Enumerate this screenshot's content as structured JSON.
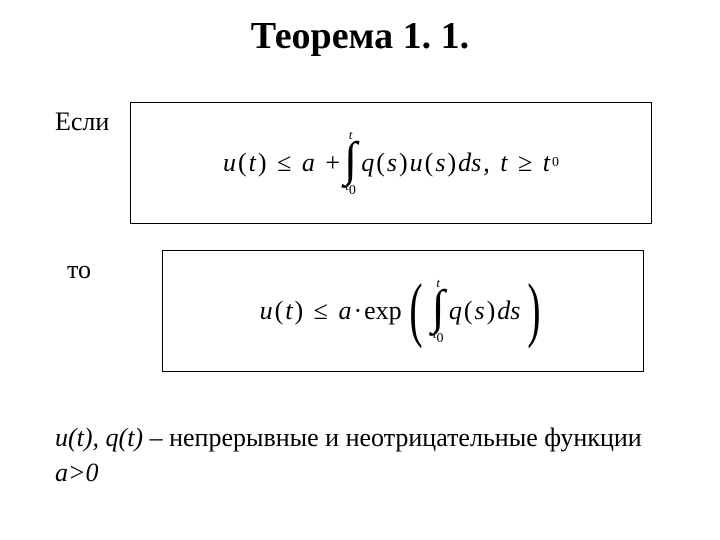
{
  "colors": {
    "background": "#ffffff",
    "text": "#000000",
    "box_border": "#000000"
  },
  "typography": {
    "family": "Times New Roman",
    "title_fontsize_pt": 38,
    "body_fontsize_pt": 26,
    "title_weight": "bold"
  },
  "title": "Теорема 1. 1.",
  "row1": {
    "lead": "Если",
    "formula": {
      "u": "u",
      "t": "t",
      "le": "≤",
      "a": "a",
      "plus": "+",
      "int_upper": "t",
      "int_lower_base": "t",
      "int_lower_sub": "0",
      "q": "q",
      "s": "s",
      "ds": "ds",
      "comma": ",",
      "ge": "≥",
      "t0_base": "t",
      "t0_sub": "0"
    }
  },
  "row2": {
    "lead": "то",
    "formula": {
      "u": "u",
      "t": "t",
      "le": "≤",
      "a": "a",
      "dot": "·",
      "exp": "exp",
      "int_upper": "t",
      "int_lower_base": "t",
      "int_lower_sub": "0",
      "q": "q",
      "s": "s",
      "ds": "ds"
    }
  },
  "footer": {
    "line1_emph": "u(t), q(t)",
    "line1_rest": " – непрерывные и неотрицательные функции",
    "line2_emph": "a>0"
  }
}
